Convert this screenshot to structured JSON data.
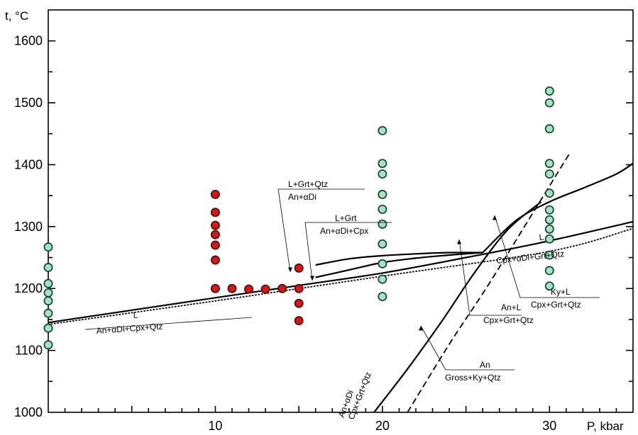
{
  "chart_data": {
    "type": "scatter",
    "ylabel": "t, °C",
    "xlabel": "P, kbar",
    "xlim": [
      0,
      35
    ],
    "ylim": [
      1000,
      1650
    ],
    "x_ticks": [
      10,
      20,
      30
    ],
    "y_ticks": [
      1000,
      1100,
      1200,
      1300,
      1400,
      1500,
      1600
    ],
    "colors": {
      "red": "#d21a1a",
      "green": "#a6e3c4",
      "edge": "#1b4a33",
      "line": "#000000"
    },
    "series": [
      {
        "color": "red",
        "points": [
          [
            10,
            1352
          ],
          [
            10,
            1323
          ],
          [
            10,
            1302
          ],
          [
            10,
            1287
          ],
          [
            10,
            1270
          ],
          [
            10,
            1246
          ],
          [
            10,
            1200
          ],
          [
            11,
            1200
          ],
          [
            12,
            1199
          ],
          [
            13,
            1199
          ],
          [
            14,
            1200
          ],
          [
            15,
            1233
          ],
          [
            15,
            1200
          ],
          [
            15,
            1176
          ],
          [
            15,
            1148
          ]
        ]
      },
      {
        "color": "green",
        "points": [
          [
            0,
            1267
          ],
          [
            0,
            1234
          ],
          [
            0,
            1208
          ],
          [
            0,
            1193
          ],
          [
            0,
            1180
          ],
          [
            0,
            1160
          ],
          [
            0,
            1136
          ],
          [
            0,
            1109
          ],
          [
            20,
            1455
          ],
          [
            20,
            1402
          ],
          [
            20,
            1385
          ],
          [
            20,
            1352
          ],
          [
            20,
            1328
          ],
          [
            20,
            1304
          ],
          [
            20,
            1272
          ],
          [
            20,
            1240
          ],
          [
            20,
            1215
          ],
          [
            20,
            1187
          ],
          [
            30,
            1519
          ],
          [
            30,
            1500
          ],
          [
            30,
            1458
          ],
          [
            30,
            1402
          ],
          [
            30,
            1385
          ],
          [
            30,
            1354
          ],
          [
            30,
            1327
          ],
          [
            30,
            1311
          ],
          [
            30,
            1296
          ],
          [
            30,
            1280
          ],
          [
            30,
            1254
          ],
          [
            30,
            1229
          ],
          [
            30,
            1204
          ]
        ]
      }
    ],
    "curves": [
      {
        "style": "solid",
        "x": [
          0,
          5,
          10,
          15,
          20,
          25,
          30,
          35
        ],
        "y": [
          1145,
          1165,
          1185,
          1205,
          1225,
          1250,
          1277,
          1308
        ]
      },
      {
        "style": "dotted",
        "x": [
          0,
          10,
          20,
          30,
          35
        ],
        "y": [
          1142,
          1180,
          1220,
          1260,
          1297
        ]
      },
      {
        "style": "solid",
        "x": [
          16,
          18,
          20,
          22,
          24,
          26
        ],
        "y": [
          1238,
          1248,
          1253,
          1256,
          1258,
          1258
        ]
      },
      {
        "style": "solid",
        "x": [
          16,
          18,
          20,
          22,
          24,
          26
        ],
        "y": [
          1218,
          1230,
          1242,
          1249,
          1254,
          1258
        ]
      },
      {
        "style": "solid",
        "x": [
          26,
          28,
          30,
          32,
          34,
          35
        ],
        "y": [
          1258,
          1310,
          1340,
          1362,
          1385,
          1402
        ]
      },
      {
        "style": "solid",
        "x": [
          19.5,
          21.5,
          23.5,
          25.5,
          27.5,
          29.5
        ],
        "y": [
          1000,
          1070,
          1145,
          1225,
          1295,
          1340
        ]
      },
      {
        "style": "dashed",
        "x": [
          21.5,
          24,
          26.2,
          28.5,
          31.2
        ],
        "y": [
          1000,
          1110,
          1200,
          1300,
          1418
        ]
      }
    ],
    "annotations": [
      {
        "top": "L",
        "bottom": "An+αDi+Cpx+Qtz"
      },
      {
        "top": "L+Grt+Qtz",
        "bottom": "An+αDi"
      },
      {
        "top": "L+Grt",
        "bottom": "An+αDi+Cpx"
      },
      {
        "top": "L",
        "bottom": "Cpx+αDi+Grt+Qtz"
      },
      {
        "top": "Ky+L",
        "bottom": "Cpx+Grt+Qtz"
      },
      {
        "top": "An+L",
        "bottom": "Cpx+Grt+Qtz"
      },
      {
        "top": "An",
        "bottom": "Gross+Ky+Qtz"
      },
      {
        "top": "An+αDi",
        "bottom": "Cpx+Grt+Qtz"
      }
    ]
  }
}
